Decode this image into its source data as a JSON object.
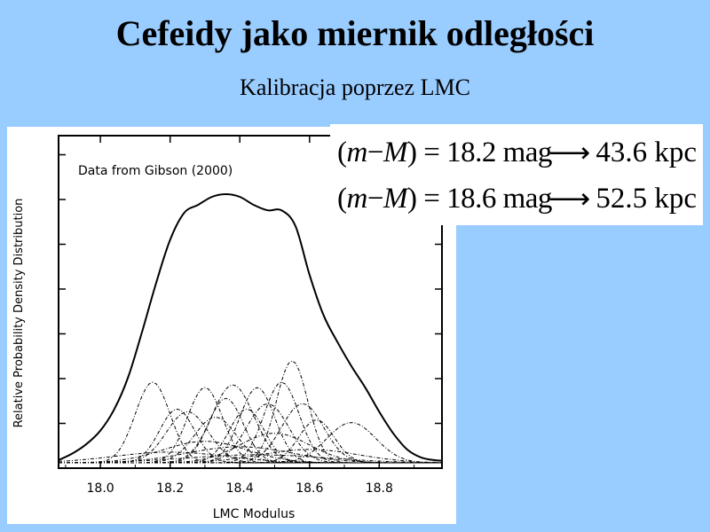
{
  "slide": {
    "title": "Cefeidy jako miernik odległości",
    "subtitle": "Kalibracja poprzez LMC"
  },
  "equations": [
    {
      "lhs_value": "18.2",
      "unit": "mag",
      "arrow": "⟶",
      "result": "43.6 kpc"
    },
    {
      "lhs_value": "18.6",
      "unit": "mag",
      "arrow": "⟶",
      "result": "52.5 kpc"
    }
  ],
  "chart_data": {
    "type": "line",
    "annotation": "Data from Gibson (2000)",
    "xlabel": "LMC Modulus",
    "ylabel": "Relative Probability Density Distribution",
    "xlim": [
      17.88,
      18.98
    ],
    "ylim": [
      0,
      1.0
    ],
    "x_ticks": [
      "18.0",
      "18.2",
      "18.4",
      "18.6",
      "18.8"
    ],
    "grid": false,
    "sum_curve": {
      "x": [
        17.88,
        17.92,
        17.96,
        18.0,
        18.04,
        18.08,
        18.12,
        18.16,
        18.2,
        18.24,
        18.28,
        18.32,
        18.36,
        18.4,
        18.44,
        18.48,
        18.52,
        18.56,
        18.6,
        18.64,
        18.68,
        18.72,
        18.76,
        18.8,
        18.84,
        18.88,
        18.92,
        18.96,
        18.98
      ],
      "y": [
        0.01,
        0.035,
        0.07,
        0.12,
        0.2,
        0.32,
        0.49,
        0.67,
        0.83,
        0.93,
        0.96,
        0.99,
        1.0,
        0.99,
        0.96,
        0.94,
        0.94,
        0.88,
        0.7,
        0.55,
        0.45,
        0.36,
        0.28,
        0.19,
        0.11,
        0.05,
        0.02,
        0.01,
        0.008
      ]
    },
    "components": [
      {
        "mu": 18.15,
        "sigma": 0.05,
        "amp": 0.3
      },
      {
        "mu": 18.22,
        "sigma": 0.05,
        "amp": 0.2
      },
      {
        "mu": 18.25,
        "sigma": 0.06,
        "amp": 0.19
      },
      {
        "mu": 18.3,
        "sigma": 0.05,
        "amp": 0.28
      },
      {
        "mu": 18.33,
        "sigma": 0.06,
        "amp": 0.17
      },
      {
        "mu": 18.36,
        "sigma": 0.05,
        "amp": 0.24
      },
      {
        "mu": 18.38,
        "sigma": 0.06,
        "amp": 0.29
      },
      {
        "mu": 18.42,
        "sigma": 0.05,
        "amp": 0.2
      },
      {
        "mu": 18.45,
        "sigma": 0.05,
        "amp": 0.28
      },
      {
        "mu": 18.48,
        "sigma": 0.06,
        "amp": 0.22
      },
      {
        "mu": 18.52,
        "sigma": 0.05,
        "amp": 0.3
      },
      {
        "mu": 18.55,
        "sigma": 0.045,
        "amp": 0.38
      },
      {
        "mu": 18.58,
        "sigma": 0.06,
        "amp": 0.22
      },
      {
        "mu": 18.62,
        "sigma": 0.05,
        "amp": 0.16
      },
      {
        "mu": 18.72,
        "sigma": 0.07,
        "amp": 0.15
      },
      {
        "mu": 18.5,
        "sigma": 0.1,
        "amp": 0.11
      },
      {
        "mu": 18.3,
        "sigma": 0.12,
        "amp": 0.08
      },
      {
        "mu": 18.4,
        "sigma": 0.15,
        "amp": 0.06
      },
      {
        "mu": 18.6,
        "sigma": 0.14,
        "amp": 0.05
      },
      {
        "mu": 18.2,
        "sigma": 0.16,
        "amp": 0.04
      },
      {
        "mu": 18.45,
        "sigma": 0.2,
        "amp": 0.03
      }
    ]
  }
}
